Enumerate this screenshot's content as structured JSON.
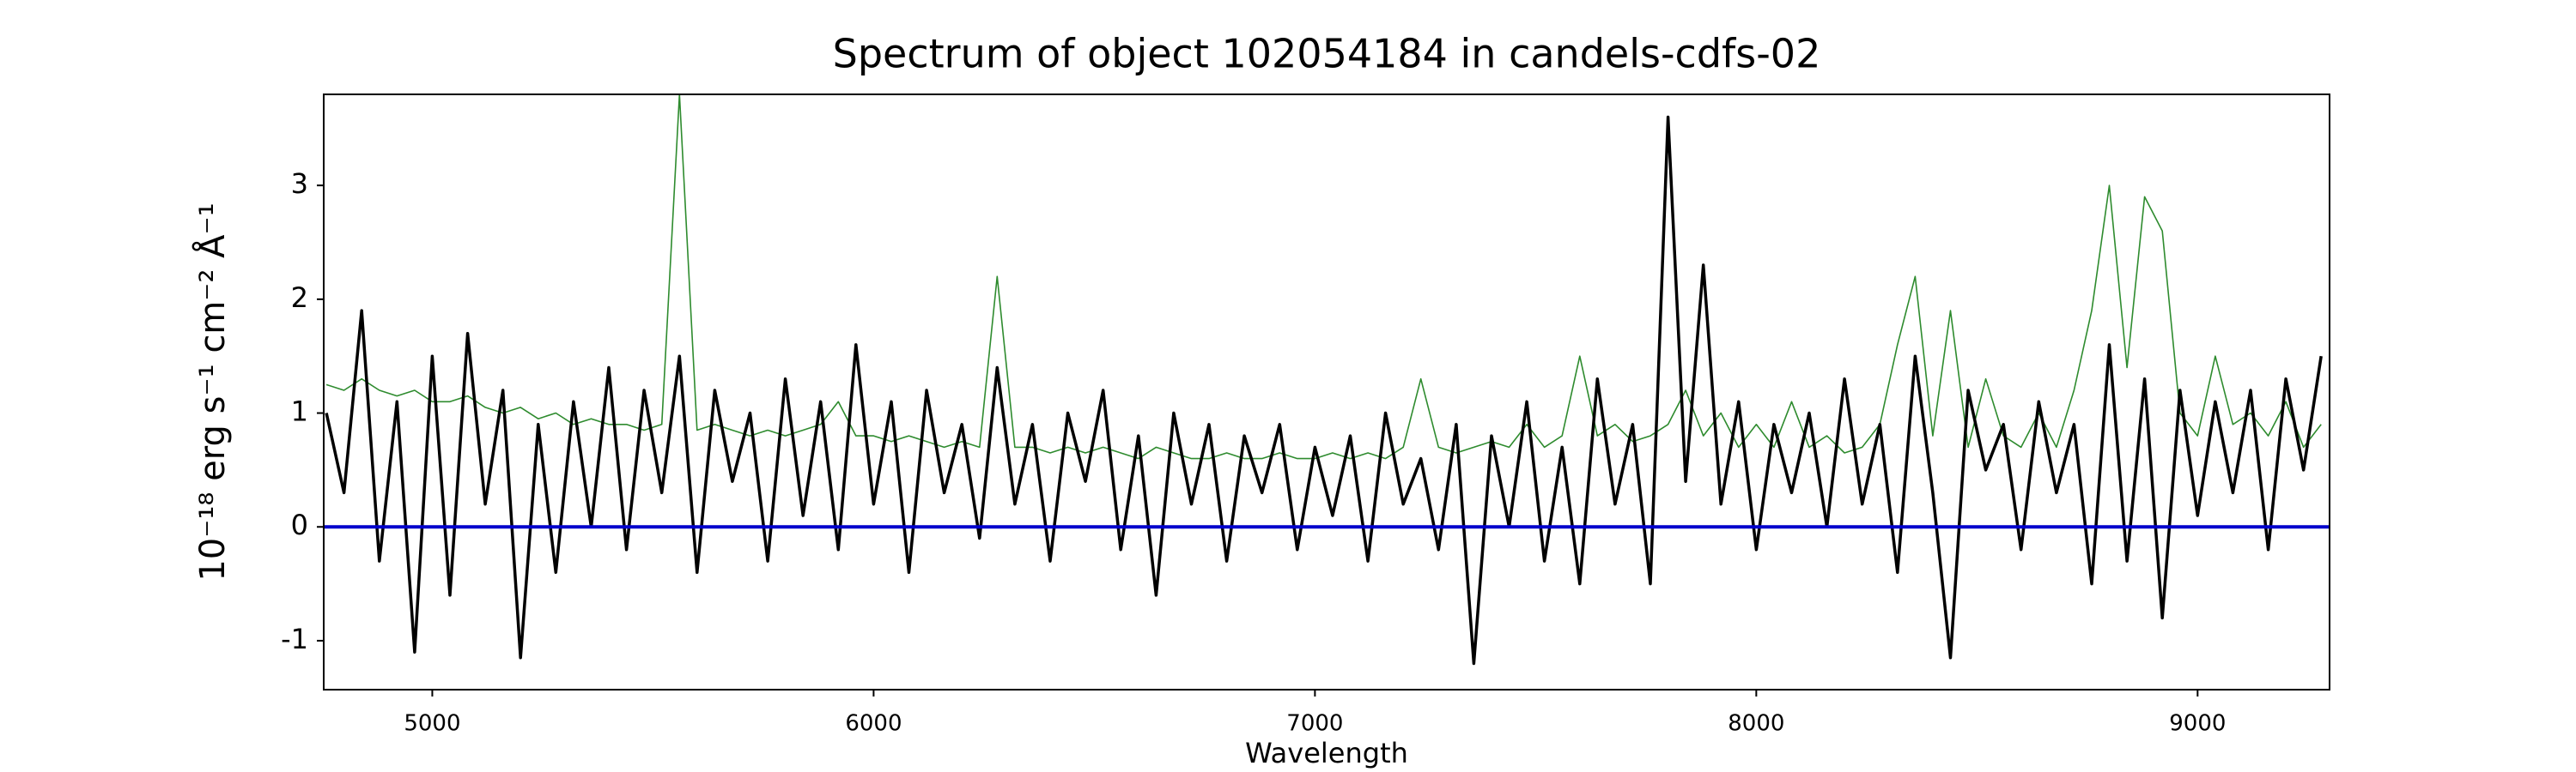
{
  "chart_data": {
    "type": "line",
    "title": "Spectrum of object 102054184 in candels-cdfs-02",
    "xlabel": "Wavelength",
    "ylabel": "10⁻¹⁸ erg s⁻¹ cm⁻² Å⁻¹",
    "x": [
      4760,
      4800,
      4840,
      4880,
      4920,
      4960,
      5000,
      5040,
      5080,
      5120,
      5160,
      5200,
      5240,
      5280,
      5320,
      5360,
      5400,
      5440,
      5480,
      5520,
      5560,
      5600,
      5640,
      5680,
      5720,
      5760,
      5800,
      5840,
      5880,
      5920,
      5960,
      6000,
      6040,
      6080,
      6120,
      6160,
      6200,
      6240,
      6280,
      6320,
      6360,
      6400,
      6440,
      6480,
      6520,
      6560,
      6600,
      6640,
      6680,
      6720,
      6760,
      6800,
      6840,
      6880,
      6920,
      6960,
      7000,
      7040,
      7080,
      7120,
      7160,
      7200,
      7240,
      7280,
      7320,
      7360,
      7400,
      7440,
      7480,
      7520,
      7560,
      7600,
      7640,
      7680,
      7720,
      7760,
      7800,
      7840,
      7880,
      7920,
      7960,
      8000,
      8040,
      8080,
      8120,
      8160,
      8200,
      8240,
      8280,
      8320,
      8360,
      8400,
      8440,
      8480,
      8520,
      8560,
      8600,
      8640,
      8680,
      8720,
      8760,
      8800,
      8840,
      8880,
      8920,
      8960,
      9000,
      9040,
      9080,
      9120,
      9160,
      9200,
      9240,
      9280
    ],
    "series": [
      {
        "color": "#2e8b2e",
        "width": 1.6,
        "values": [
          1.25,
          1.2,
          1.3,
          1.2,
          1.15,
          1.2,
          1.1,
          1.1,
          1.15,
          1.05,
          1.0,
          1.05,
          0.95,
          1.0,
          0.9,
          0.95,
          0.9,
          0.9,
          0.85,
          0.9,
          3.8,
          0.85,
          0.9,
          0.85,
          0.8,
          0.85,
          0.8,
          0.85,
          0.9,
          1.1,
          0.8,
          0.8,
          0.75,
          0.8,
          0.75,
          0.7,
          0.75,
          0.7,
          2.2,
          0.7,
          0.7,
          0.65,
          0.7,
          0.65,
          0.7,
          0.65,
          0.6,
          0.7,
          0.65,
          0.6,
          0.6,
          0.65,
          0.6,
          0.6,
          0.65,
          0.6,
          0.6,
          0.65,
          0.6,
          0.65,
          0.6,
          0.7,
          1.3,
          0.7,
          0.65,
          0.7,
          0.75,
          0.7,
          0.9,
          0.7,
          0.8,
          1.5,
          0.8,
          0.9,
          0.75,
          0.8,
          0.9,
          1.2,
          0.8,
          1.0,
          0.7,
          0.9,
          0.7,
          1.1,
          0.7,
          0.8,
          0.65,
          0.7,
          0.9,
          1.6,
          2.2,
          0.8,
          1.9,
          0.7,
          1.3,
          0.8,
          0.7,
          1.0,
          0.7,
          1.2,
          1.9,
          3.0,
          1.4,
          2.9,
          2.6,
          1.0,
          0.8,
          1.5,
          0.9,
          1.0,
          0.8,
          1.1,
          0.7,
          0.9
        ]
      },
      {
        "color": "#000000",
        "width": 3.5,
        "values": [
          1.0,
          0.3,
          1.9,
          -0.3,
          1.1,
          -1.1,
          1.5,
          -0.6,
          1.7,
          0.2,
          1.2,
          -1.15,
          0.9,
          -0.4,
          1.1,
          0.0,
          1.4,
          -0.2,
          1.2,
          0.3,
          1.5,
          -0.4,
          1.2,
          0.4,
          1.0,
          -0.3,
          1.3,
          0.1,
          1.1,
          -0.2,
          1.6,
          0.2,
          1.1,
          -0.4,
          1.2,
          0.3,
          0.9,
          -0.1,
          1.4,
          0.2,
          0.9,
          -0.3,
          1.0,
          0.4,
          1.2,
          -0.2,
          0.8,
          -0.6,
          1.0,
          0.2,
          0.9,
          -0.3,
          0.8,
          0.3,
          0.9,
          -0.2,
          0.7,
          0.1,
          0.8,
          -0.3,
          1.0,
          0.2,
          0.6,
          -0.2,
          0.9,
          -1.2,
          0.8,
          0.0,
          1.1,
          -0.3,
          0.7,
          -0.5,
          1.3,
          0.2,
          0.9,
          -0.5,
          3.6,
          0.4,
          2.3,
          0.2,
          1.1,
          -0.2,
          0.9,
          0.3,
          1.0,
          0.0,
          1.3,
          0.2,
          0.9,
          -0.4,
          1.5,
          0.3,
          -1.15,
          1.2,
          0.5,
          0.9,
          -0.2,
          1.1,
          0.3,
          0.9,
          -0.5,
          1.6,
          -0.3,
          1.3,
          -0.8,
          1.2,
          0.1,
          1.1,
          0.3,
          1.2,
          -0.2,
          1.3,
          0.5,
          1.5
        ]
      }
    ],
    "zero_line": {
      "value": 0,
      "color": "#0000cc"
    },
    "xlim": [
      4754,
      9299
    ],
    "xticks": [
      5000,
      6000,
      7000,
      8000,
      9000
    ],
    "ylim": [
      -1.43,
      3.8
    ],
    "yticks": [
      -1,
      0,
      1,
      2,
      3
    ]
  }
}
